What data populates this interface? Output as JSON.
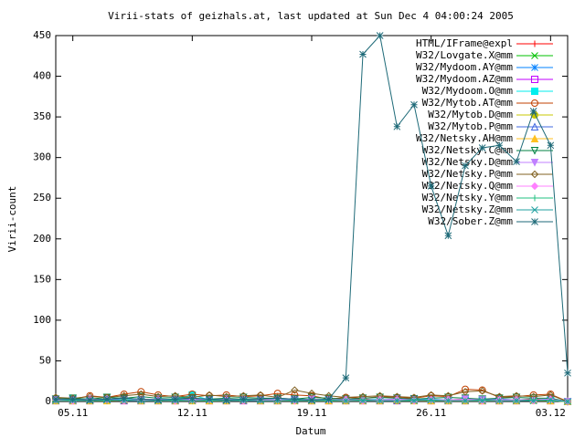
{
  "chart_data": {
    "type": "line",
    "title": "Virii-stats of geizhals.at, last updated at Sun Dec  4 04:00:24 2005",
    "x_label": "Datum",
    "y_label": "Virii-count",
    "categories": [
      null,
      "05.11",
      null,
      null,
      null,
      null,
      null,
      null,
      "12.11",
      null,
      null,
      null,
      null,
      null,
      null,
      "19.11",
      null,
      null,
      null,
      null,
      null,
      null,
      "26.11",
      null,
      null,
      null,
      null,
      null,
      null,
      "03.12",
      null
    ],
    "ylim": [
      0,
      450
    ],
    "yticks": [
      0,
      50,
      100,
      150,
      200,
      250,
      300,
      350,
      400,
      450
    ],
    "grid": false,
    "legend": "top-right",
    "series": [
      {
        "name": "HTML/IFrame@expl",
        "color": "#ff0000",
        "marker": "plus",
        "values": [
          2,
          2,
          3,
          2,
          2,
          3,
          2,
          2,
          3,
          2,
          2,
          2,
          3,
          2,
          2,
          2,
          2,
          2,
          3,
          2,
          2,
          3,
          2,
          2,
          3,
          2,
          2,
          2,
          3,
          2,
          0
        ]
      },
      {
        "name": "W32/Lovgate.X@mm",
        "color": "#00c000",
        "marker": "x",
        "values": [
          1,
          1,
          2,
          1,
          5,
          2,
          1,
          1,
          2,
          1,
          1,
          2,
          1,
          1,
          2,
          1,
          1,
          1,
          2,
          1,
          1,
          1,
          2,
          1,
          1,
          1,
          1,
          2,
          1,
          1,
          0
        ]
      },
      {
        "name": "W32/Mydoom.AY@mm",
        "color": "#0080ff",
        "marker": "star",
        "values": [
          3,
          2,
          2,
          3,
          2,
          2,
          3,
          2,
          2,
          2,
          3,
          2,
          2,
          3,
          2,
          2,
          2,
          3,
          2,
          2,
          3,
          4,
          2,
          2,
          2,
          3,
          2,
          2,
          2,
          2,
          0
        ]
      },
      {
        "name": "W32/Mydoom.AZ@mm",
        "color": "#c000ff",
        "marker": "square-open",
        "values": [
          1,
          1,
          1,
          2,
          1,
          1,
          1,
          1,
          2,
          1,
          1,
          1,
          1,
          1,
          2,
          1,
          1,
          1,
          1,
          1,
          1,
          2,
          1,
          1,
          1,
          1,
          1,
          1,
          2,
          1,
          0
        ]
      },
      {
        "name": "W32/Mydoom.O@mm",
        "color": "#00eeee",
        "marker": "square",
        "values": [
          2,
          3,
          2,
          2,
          3,
          2,
          2,
          3,
          8,
          2,
          3,
          2,
          2,
          3,
          2,
          2,
          3,
          2,
          2,
          3,
          2,
          2,
          3,
          2,
          2,
          2,
          3,
          2,
          2,
          3,
          0
        ]
      },
      {
        "name": "W32/Mytob.AT@mm",
        "color": "#c04000",
        "marker": "circle-open",
        "values": [
          4,
          3,
          7,
          5,
          9,
          12,
          8,
          6,
          9,
          7,
          8,
          6,
          7,
          10,
          8,
          7,
          3,
          5,
          4,
          6,
          5,
          4,
          7,
          6,
          15,
          14,
          5,
          6,
          8,
          9,
          0
        ]
      },
      {
        "name": "W32/Mytob.D@mm",
        "color": "#c8c800",
        "marker": "circle",
        "values": [
          1,
          1,
          1,
          1,
          1,
          2,
          1,
          1,
          1,
          1,
          1,
          1,
          2,
          1,
          1,
          1,
          1,
          1,
          1,
          2,
          1,
          1,
          1,
          1,
          1,
          1,
          1,
          2,
          1,
          1,
          0
        ]
      },
      {
        "name": "W32/Mytob.P@mm",
        "color": "#4169e1",
        "marker": "triangle-open",
        "values": [
          2,
          2,
          2,
          3,
          2,
          2,
          2,
          2,
          3,
          2,
          2,
          2,
          2,
          2,
          3,
          2,
          2,
          2,
          2,
          2,
          3,
          2,
          2,
          2,
          2,
          2,
          3,
          2,
          2,
          2,
          0
        ]
      },
      {
        "name": "W32/Netsky.AH@mm",
        "color": "#ffc020",
        "marker": "triangle",
        "values": [
          1,
          1,
          1,
          1,
          2,
          1,
          1,
          1,
          1,
          1,
          1,
          2,
          1,
          1,
          1,
          1,
          1,
          1,
          1,
          1,
          2,
          1,
          1,
          1,
          1,
          1,
          1,
          1,
          2,
          1,
          0
        ]
      },
      {
        "name": "W32/Netsky.C@mm",
        "color": "#008040",
        "marker": "tri-down-open",
        "values": [
          3,
          4,
          3,
          5,
          4,
          6,
          4,
          5,
          4,
          3,
          4,
          5,
          4,
          4,
          3,
          5,
          4,
          3,
          4,
          5,
          4,
          3,
          4,
          5,
          4,
          3,
          4,
          5,
          4,
          4,
          0
        ]
      },
      {
        "name": "W32/Netsky.D@mm",
        "color": "#c080ff",
        "marker": "tri-down",
        "values": [
          2,
          2,
          3,
          2,
          2,
          2,
          3,
          2,
          2,
          2,
          3,
          2,
          2,
          2,
          2,
          3,
          2,
          2,
          2,
          2,
          3,
          2,
          2,
          2,
          3,
          2,
          2,
          2,
          2,
          3,
          0
        ]
      },
      {
        "name": "W32/Netsky.P@mm",
        "color": "#806020",
        "marker": "diamond-open",
        "values": [
          5,
          4,
          6,
          5,
          7,
          9,
          6,
          7,
          5,
          8,
          6,
          7,
          8,
          5,
          14,
          10,
          7,
          5,
          6,
          7,
          6,
          5,
          8,
          7,
          12,
          13,
          6,
          7,
          6,
          8,
          0
        ]
      },
      {
        "name": "W32/Netsky.Q@mm",
        "color": "#ff80ff",
        "marker": "diamond",
        "values": [
          2,
          1,
          2,
          2,
          1,
          2,
          2,
          1,
          2,
          2,
          2,
          1,
          2,
          2,
          1,
          2,
          2,
          2,
          1,
          2,
          2,
          1,
          2,
          2,
          2,
          1,
          2,
          2,
          1,
          2,
          0
        ]
      },
      {
        "name": "W32/Netsky.Y@mm",
        "color": "#20c080",
        "marker": "plus",
        "values": [
          1,
          2,
          1,
          1,
          2,
          1,
          1,
          2,
          1,
          1,
          1,
          2,
          1,
          1,
          2,
          1,
          1,
          1,
          2,
          1,
          1,
          2,
          1,
          1,
          1,
          2,
          1,
          1,
          2,
          1,
          0
        ]
      },
      {
        "name": "W32/Netsky.Z@mm",
        "color": "#20a0a0",
        "marker": "x",
        "values": [
          1,
          1,
          1,
          2,
          1,
          1,
          1,
          1,
          1,
          2,
          1,
          1,
          1,
          1,
          1,
          1,
          2,
          1,
          1,
          1,
          1,
          1,
          2,
          1,
          1,
          1,
          1,
          1,
          1,
          2,
          0
        ]
      },
      {
        "name": "W32/Sober.Z@mm",
        "color": "#1e6a78",
        "marker": "star",
        "values": [
          3,
          3,
          2,
          3,
          4,
          3,
          2,
          3,
          4,
          3,
          2,
          3,
          3,
          4,
          3,
          2,
          3,
          29,
          427,
          450,
          338,
          365,
          265,
          204,
          290,
          312,
          315,
          295,
          357,
          315,
          35
        ]
      }
    ]
  }
}
